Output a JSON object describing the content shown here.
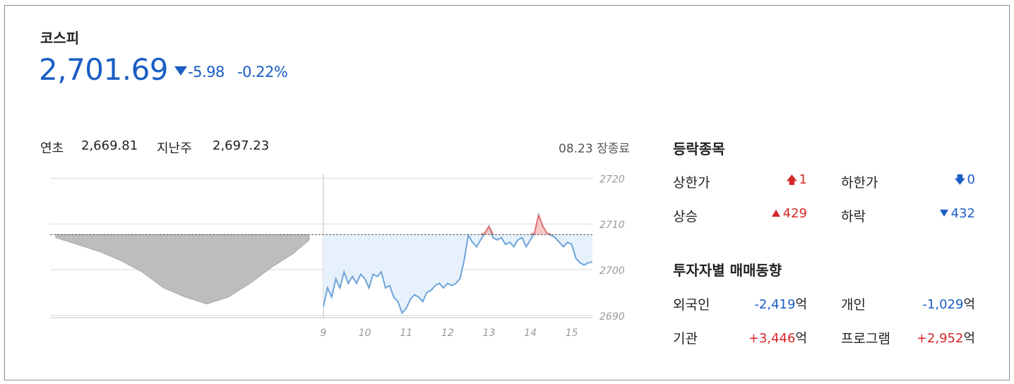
{
  "index": {
    "name": "코스피",
    "value": "2,701.69",
    "change": "-5.98",
    "change_pct": "-0.22%"
  },
  "reference": {
    "ytd_label": "연초",
    "ytd_value": "2,669.81",
    "lastweek_label": "지난주",
    "lastweek_value": "2,697.23"
  },
  "status": "08.23 장종료",
  "breadth": {
    "title": "등락종목",
    "limit_up_label": "상한가",
    "limit_up_value": "1",
    "limit_down_label": "하한가",
    "limit_down_value": "0",
    "rise_label": "상승",
    "rise_value": "429",
    "fall_label": "하락",
    "fall_value": "432"
  },
  "investors": {
    "title": "투자자별 매매동향",
    "unit": "억",
    "foreign_label": "외국인",
    "foreign_value": "-2,419",
    "individual_label": "개인",
    "individual_value": "-1,029",
    "institution_label": "기관",
    "institution_value": "+3,446",
    "program_label": "프로그램",
    "program_value": "+2,952"
  },
  "colors": {
    "up": "#d62828",
    "down": "#1a5dc5",
    "line": "#6fa3d8",
    "fill_today": "#e6f1fb",
    "fill_prev": "#bdbdbd"
  },
  "chart_data": {
    "type": "area",
    "ylim": [
      2689.5,
      2721
    ],
    "yticks": [
      2720,
      2710,
      2700,
      2690
    ],
    "xlim": [
      9,
      15.5
    ],
    "xticks": [
      "9",
      "10",
      "11",
      "12",
      "13",
      "14",
      "15"
    ],
    "reference_value": 2707.67,
    "series": [
      {
        "x": [
          9.0,
          9.1,
          9.2,
          9.3,
          9.4,
          9.5,
          9.6,
          9.7,
          9.8,
          9.9,
          10.0,
          10.1,
          10.2,
          10.3,
          10.4,
          10.5,
          10.6,
          10.7,
          10.8,
          10.9,
          11.0,
          11.1,
          11.2,
          11.3,
          11.4,
          11.5,
          11.6,
          11.7,
          11.8,
          11.9,
          12.0,
          12.1,
          12.2,
          12.3,
          12.4,
          12.5,
          12.6,
          12.65,
          12.7,
          12.8,
          12.9,
          13.0,
          13.1,
          13.2,
          13.3,
          13.4,
          13.5,
          13.6,
          13.7,
          13.8,
          13.9,
          14.0,
          14.1,
          14.2,
          14.3,
          14.4,
          14.5,
          14.6,
          14.7,
          14.8,
          14.9,
          15.0,
          15.1,
          15.2,
          15.3,
          15.4,
          15.5
        ],
        "y": [
          2692.0,
          2696.0,
          2694.0,
          2698.0,
          2696.0,
          2699.5,
          2697.0,
          2698.5,
          2697.0,
          2699.0,
          2698.0,
          2696.0,
          2699.0,
          2698.5,
          2699.5,
          2696.0,
          2696.5,
          2694.0,
          2693.0,
          2690.5,
          2691.5,
          2693.5,
          2694.5,
          2694.0,
          2693.0,
          2695.0,
          2695.5,
          2696.5,
          2697.0,
          2696.0,
          2697.0,
          2696.5,
          2697.0,
          2698.0,
          2702.0,
          2707.5,
          2706.0,
          2705.5,
          2705.0,
          2706.5,
          2708.0,
          2709.5,
          2707.0,
          2706.5,
          2707.0,
          2705.5,
          2706.0,
          2705.0,
          2706.5,
          2707.0,
          2705.0,
          2706.5,
          2708.0,
          2712.0,
          2709.5,
          2708.0,
          2707.5,
          2707.0,
          2706.0,
          2705.0,
          2706.0,
          2705.5,
          2702.5,
          2701.5,
          2701.0,
          2701.5,
          2701.69
        ]
      },
      {
        "name": "prev",
        "x": [
          6.6,
          6.8,
          7.0,
          7.2,
          7.4,
          7.6,
          7.8,
          8.0,
          8.2,
          8.4,
          8.6,
          8.8,
          8.95
        ],
        "y": [
          2707.0,
          2705.5,
          2704.0,
          2702.0,
          2699.5,
          2696.0,
          2694.0,
          2692.5,
          2694.0,
          2697.0,
          2700.5,
          2703.5,
          2706.5
        ]
      }
    ]
  }
}
